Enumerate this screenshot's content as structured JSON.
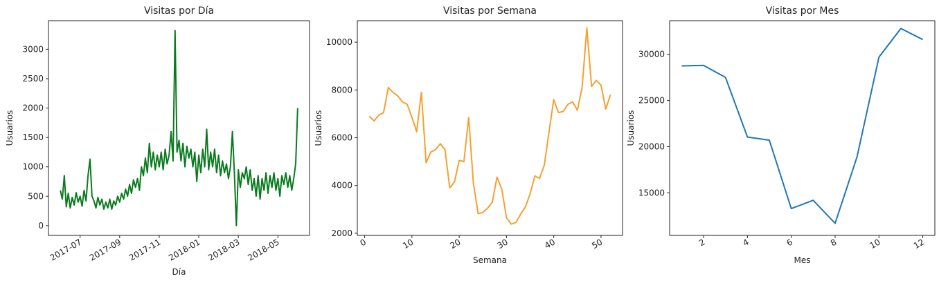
{
  "chart_data": [
    {
      "type": "line",
      "title": "Visitas por Día",
      "xlabel": "Día",
      "ylabel": "Usuarios",
      "color": "#0a7a1e",
      "x": [
        0,
        0.1,
        0.2,
        0.3,
        0.4,
        0.5,
        0.6,
        0.7,
        0.8,
        0.9,
        1,
        1.1,
        1.2,
        1.3,
        1.4,
        1.5,
        1.6,
        1.7,
        1.8,
        1.9,
        2,
        2.1,
        2.2,
        2.3,
        2.4,
        2.5,
        2.6,
        2.7,
        2.8,
        2.9,
        3,
        3.1,
        3.2,
        3.3,
        3.4,
        3.5,
        3.6,
        3.7,
        3.8,
        3.9,
        4,
        4.1,
        4.2,
        4.3,
        4.4,
        4.5,
        4.6,
        4.7,
        4.8,
        4.9,
        5,
        5.1,
        5.2,
        5.3,
        5.4,
        5.5,
        5.6,
        5.7,
        5.8,
        5.9,
        6,
        6.1,
        6.2,
        6.3,
        6.4,
        6.5,
        6.6,
        6.7,
        6.8,
        6.9,
        7,
        7.1,
        7.2,
        7.3,
        7.4,
        7.5,
        7.6,
        7.7,
        7.8,
        7.9,
        8,
        8.1,
        8.2,
        8.3,
        8.4,
        8.5,
        8.6,
        8.7,
        8.8,
        8.9,
        9,
        9.1,
        9.2,
        9.3,
        9.4,
        9.5,
        9.6,
        9.7,
        9.8,
        9.9,
        10,
        10.1,
        10.2,
        10.3,
        10.4,
        10.5,
        10.6,
        10.7,
        10.8,
        10.9,
        11,
        11.1,
        11.2,
        11.3,
        11.4,
        11.5,
        11.6,
        11.7,
        11.8,
        11.9,
        12
      ],
      "values": [
        600,
        450,
        850,
        320,
        550,
        300,
        480,
        350,
        560,
        400,
        500,
        330,
        600,
        420,
        850,
        1130,
        500,
        420,
        300,
        480,
        350,
        450,
        280,
        400,
        300,
        450,
        280,
        420,
        350,
        500,
        400,
        550,
        450,
        620,
        500,
        700,
        550,
        780,
        650,
        800,
        600,
        1000,
        850,
        1150,
        900,
        1400,
        1000,
        1250,
        950,
        1200,
        1000,
        1250,
        950,
        1300,
        1050,
        1200,
        1600,
        1100,
        3320,
        1250,
        1450,
        1100,
        1400,
        1000,
        1350,
        1150,
        1300,
        1000,
        1250,
        750,
        1200,
        900,
        1300,
        1000,
        1640,
        950,
        1250,
        1000,
        1300,
        900,
        1200,
        850,
        1100,
        900,
        1050,
        800,
        1000,
        1600,
        900,
        0,
        950,
        650,
        900,
        800,
        1000,
        700,
        950,
        600,
        800,
        500,
        850,
        450,
        800,
        600,
        900,
        550,
        850,
        650,
        900,
        600,
        800,
        500,
        850,
        700,
        900,
        650,
        850,
        600,
        800,
        1050,
        2000
      ],
      "xlim": [
        -0.6,
        12.6
      ],
      "xticks": [
        {
          "value": 1,
          "label": "2017-07"
        },
        {
          "value": 3,
          "label": "2017-09"
        },
        {
          "value": 5,
          "label": "2017-11"
        },
        {
          "value": 7,
          "label": "2018-01"
        },
        {
          "value": 9,
          "label": "2018-03"
        },
        {
          "value": 11,
          "label": "2018-05"
        }
      ],
      "ylim": [
        -166,
        3486
      ],
      "yticks": [
        0,
        500,
        1000,
        1500,
        2000,
        2500,
        3000
      ]
    },
    {
      "type": "line",
      "title": "Visitas por Semana",
      "xlabel": "Semana",
      "ylabel": "Usuarios",
      "color": "#f5a030",
      "x": [
        1,
        2,
        3,
        4,
        5,
        6,
        7,
        8,
        9,
        10,
        11,
        12,
        13,
        14,
        15,
        16,
        17,
        18,
        19,
        20,
        21,
        22,
        23,
        24,
        25,
        26,
        27,
        28,
        29,
        30,
        31,
        32,
        33,
        34,
        35,
        36,
        37,
        38,
        39,
        40,
        41,
        42,
        43,
        44,
        45,
        46,
        47,
        48,
        49,
        50,
        51,
        52
      ],
      "values": [
        6900,
        6700,
        6950,
        7050,
        8100,
        7900,
        7750,
        7500,
        7400,
        6850,
        6250,
        7900,
        4950,
        5400,
        5500,
        5750,
        5500,
        3900,
        4150,
        5050,
        5000,
        6850,
        4100,
        2820,
        2870,
        3050,
        3300,
        4350,
        3850,
        2650,
        2380,
        2450,
        2800,
        3100,
        3650,
        4400,
        4300,
        4850,
        6250,
        7600,
        7050,
        7100,
        7400,
        7500,
        7150,
        8100,
        10600,
        8150,
        8400,
        8200,
        7200,
        7800
      ],
      "xlim": [
        -1.55,
        54.55
      ],
      "xticks": [
        0,
        10,
        20,
        30,
        40,
        50
      ],
      "ylim": [
        1910,
        10900
      ],
      "yticks": [
        2000,
        4000,
        6000,
        8000,
        10000
      ]
    },
    {
      "type": "line",
      "title": "Visitas por Mes",
      "xlabel": "Mes",
      "ylabel": "Usuarios",
      "color": "#1f77b4",
      "x": [
        1,
        2,
        3,
        4,
        5,
        6,
        7,
        8,
        9,
        10,
        11,
        12
      ],
      "values": [
        28750,
        28800,
        27500,
        21050,
        20700,
        13300,
        14200,
        11700,
        18900,
        29700,
        32800,
        31600
      ],
      "xlim": [
        0.45,
        12.55
      ],
      "xticks": [
        2,
        4,
        6,
        8,
        10,
        12
      ],
      "ylim": [
        10400,
        33640
      ],
      "yticks": [
        15000,
        20000,
        25000,
        30000
      ]
    }
  ]
}
